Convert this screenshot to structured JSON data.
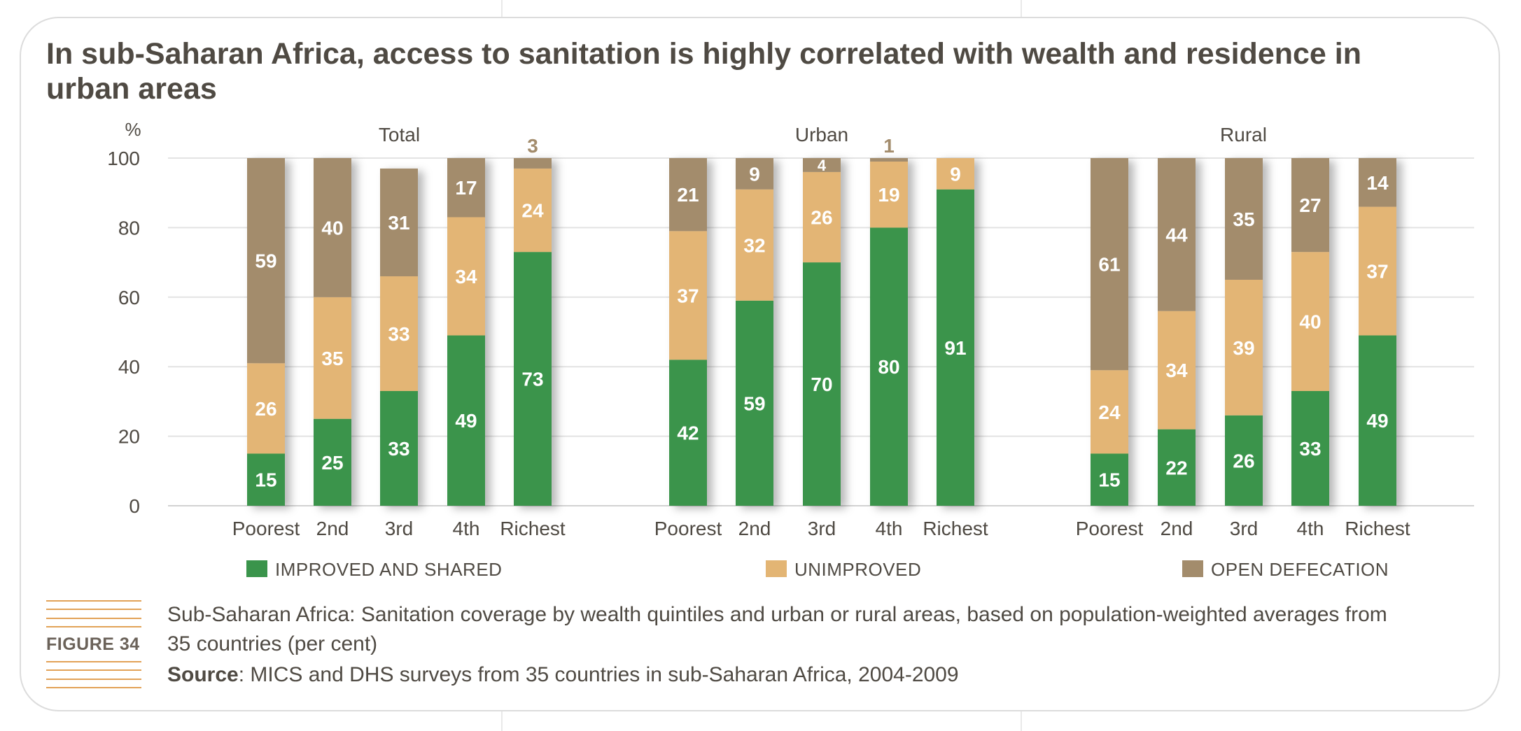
{
  "figure": {
    "title": "In sub-Saharan Africa, access to sanitation is highly correlated with wealth and residence in urban areas",
    "label": "FIGURE 34",
    "caption": "Sub-Saharan Africa: Sanitation coverage by wealth quintiles and urban or rural areas, based on population-weighted averages from 35 countries (per cent)",
    "source_label": "Source",
    "source_text": ": MICS and DHS surveys from 35 countries in sub-Saharan Africa, 2004-2009"
  },
  "chart_data": {
    "type": "bar",
    "stacked": true,
    "ylabel": "%",
    "ylim": [
      0,
      100
    ],
    "yticks": [
      0,
      20,
      40,
      60,
      80,
      100
    ],
    "grid": true,
    "legend_position": "bottom",
    "categories": [
      "Poorest",
      "2nd",
      "3rd",
      "4th",
      "Richest"
    ],
    "series_meta": [
      {
        "name": "IMPROVED AND SHARED",
        "color": "#3a944b"
      },
      {
        "name": "UNIMPROVED",
        "color": "#e3b574"
      },
      {
        "name": "OPEN DEFECATION",
        "color": "#a38c6c"
      }
    ],
    "panels": [
      {
        "name": "Total",
        "series": [
          {
            "name": "IMPROVED AND SHARED",
            "values": [
              15,
              25,
              33,
              49,
              73
            ]
          },
          {
            "name": "UNIMPROVED",
            "values": [
              26,
              35,
              33,
              34,
              24
            ]
          },
          {
            "name": "OPEN DEFECATION",
            "values": [
              59,
              40,
              31,
              17,
              3
            ]
          }
        ]
      },
      {
        "name": "Urban",
        "series": [
          {
            "name": "IMPROVED AND SHARED",
            "values": [
              42,
              59,
              70,
              80,
              91
            ]
          },
          {
            "name": "UNIMPROVED",
            "values": [
              37,
              32,
              26,
              19,
              9
            ]
          },
          {
            "name": "OPEN DEFECATION",
            "values": [
              21,
              9,
              4,
              1,
              0
            ]
          }
        ]
      },
      {
        "name": "Rural",
        "series": [
          {
            "name": "IMPROVED AND SHARED",
            "values": [
              15,
              22,
              26,
              33,
              49
            ]
          },
          {
            "name": "UNIMPROVED",
            "values": [
              24,
              34,
              39,
              40,
              37
            ]
          },
          {
            "name": "OPEN DEFECATION",
            "values": [
              61,
              44,
              35,
              27,
              14
            ]
          }
        ]
      }
    ]
  }
}
